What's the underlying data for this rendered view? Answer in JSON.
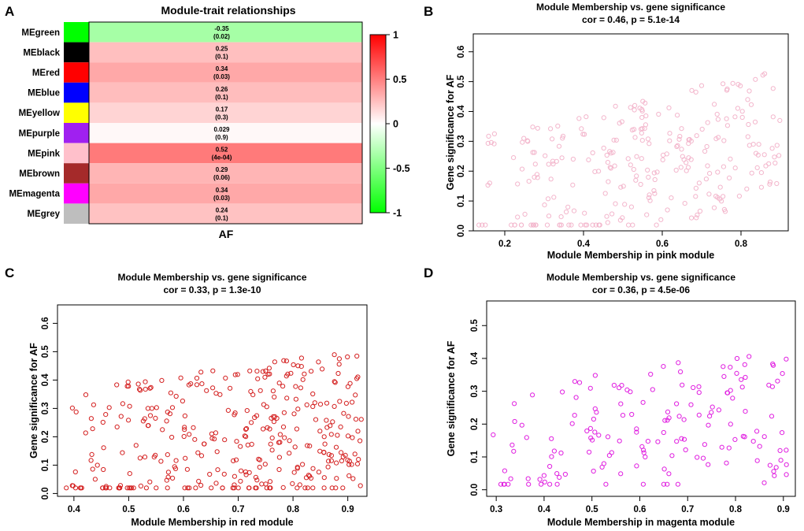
{
  "panels": {
    "A": "A",
    "B": "B",
    "C": "C",
    "D": "D"
  },
  "colors": {
    "positive": "#ff0000",
    "negative": "#00ff00",
    "neutral": "#ffffff",
    "pink_points": "#f3b6cc",
    "red_points": "#d42020",
    "magenta_points": "#e020e0"
  },
  "chart_data": [
    {
      "type": "heatmap",
      "title": "Module-trait relationships",
      "xlabel": "AF",
      "color_range": [
        -1,
        1
      ],
      "colorbar_ticks": [
        "1",
        "0.5",
        "0",
        "-0.5",
        "-1"
      ],
      "rows": [
        {
          "module": "MEgreen",
          "swatch": "#00ff00",
          "cor": -0.35,
          "cor_label": "-0.35",
          "p_label": "(0.02)"
        },
        {
          "module": "MEblack",
          "swatch": "#000000",
          "cor": 0.25,
          "cor_label": "0.25",
          "p_label": "(0.1)"
        },
        {
          "module": "MEred",
          "swatch": "#ff0000",
          "cor": 0.34,
          "cor_label": "0.34",
          "p_label": "(0.03)"
        },
        {
          "module": "MEblue",
          "swatch": "#0000ff",
          "cor": 0.26,
          "cor_label": "0.26",
          "p_label": "(0.1)"
        },
        {
          "module": "MEyellow",
          "swatch": "#ffff00",
          "cor": 0.17,
          "cor_label": "0.17",
          "p_label": "(0.3)"
        },
        {
          "module": "MEpurple",
          "swatch": "#a020f0",
          "cor": 0.029,
          "cor_label": "0.029",
          "p_label": "(0.9)"
        },
        {
          "module": "MEpink",
          "swatch": "#ffc0cb",
          "cor": 0.52,
          "cor_label": "0.52",
          "p_label": "(4e-04)"
        },
        {
          "module": "MEbrown",
          "swatch": "#a52a2a",
          "cor": 0.29,
          "cor_label": "0.29",
          "p_label": "(0.06)"
        },
        {
          "module": "MEmagenta",
          "swatch": "#ff00ff",
          "cor": 0.34,
          "cor_label": "0.34",
          "p_label": "(0.03)"
        },
        {
          "module": "MEgrey",
          "swatch": "#bebebe",
          "cor": 0.24,
          "cor_label": "0.24",
          "p_label": "(0.1)"
        }
      ]
    },
    {
      "type": "scatter",
      "module": "pink",
      "title": "Module Membership vs. gene significance",
      "subtitle": "cor = 0.46, p = 5.1e-14",
      "xlabel": "Module Membership in pink module",
      "ylabel": "Gene significance for AF",
      "xlim": [
        0.12,
        0.92
      ],
      "ylim": [
        0.0,
        0.66
      ],
      "xticks": [
        0.2,
        0.4,
        0.6,
        0.8
      ],
      "xtick_labels": [
        "0.2",
        "0.4",
        "0.6",
        "0.8"
      ],
      "yticks": [
        0.0,
        0.1,
        0.2,
        0.3,
        0.4,
        0.5,
        0.6
      ],
      "ytick_labels": [
        "0.0",
        "0.1",
        "0.2",
        "0.3",
        "0.4",
        "0.5",
        "0.6"
      ],
      "n_points": 270,
      "x_range": [
        0.13,
        0.9
      ],
      "cor": 0.46,
      "seed": 11
    },
    {
      "type": "scatter",
      "module": "red",
      "title": "Module Membership vs. gene significance",
      "subtitle": "cor = 0.33, p = 1.3e-10",
      "xlabel": "Module Membership in red module",
      "ylabel": "Gene significance for AF",
      "xlim": [
        0.37,
        0.935
      ],
      "ylim": [
        -0.01,
        0.665
      ],
      "xticks": [
        0.4,
        0.5,
        0.6,
        0.7,
        0.8,
        0.9
      ],
      "xtick_labels": [
        "0.4",
        "0.5",
        "0.6",
        "0.7",
        "0.8",
        "0.9"
      ],
      "yticks": [
        0.0,
        0.1,
        0.2,
        0.3,
        0.4,
        0.5,
        0.6
      ],
      "ytick_labels": [
        "0.0",
        "0.1",
        "0.2",
        "0.3",
        "0.4",
        "0.5",
        "0.6"
      ],
      "n_points": 340,
      "x_range": [
        0.38,
        0.925
      ],
      "cor": 0.33,
      "seed": 23
    },
    {
      "type": "scatter",
      "module": "magenta",
      "title": "Module Membership vs. gene significance",
      "subtitle": "cor = 0.36, p = 4.5e-06",
      "xlabel": "Module Membership in magenta module",
      "ylabel": "Gene significance for AF",
      "xlim": [
        0.28,
        0.925
      ],
      "ylim": [
        -0.02,
        0.575
      ],
      "xticks": [
        0.3,
        0.4,
        0.5,
        0.6,
        0.7,
        0.8,
        0.9
      ],
      "xtick_labels": [
        "0.3",
        "0.4",
        "0.5",
        "0.6",
        "0.7",
        "0.8",
        "0.9"
      ],
      "yticks": [
        0.0,
        0.1,
        0.2,
        0.3,
        0.4,
        0.5
      ],
      "ytick_labels": [
        "0.0",
        "0.1",
        "0.2",
        "0.3",
        "0.4",
        "0.5"
      ],
      "n_points": 160,
      "x_range": [
        0.29,
        0.91
      ],
      "cor": 0.36,
      "seed": 37
    }
  ]
}
